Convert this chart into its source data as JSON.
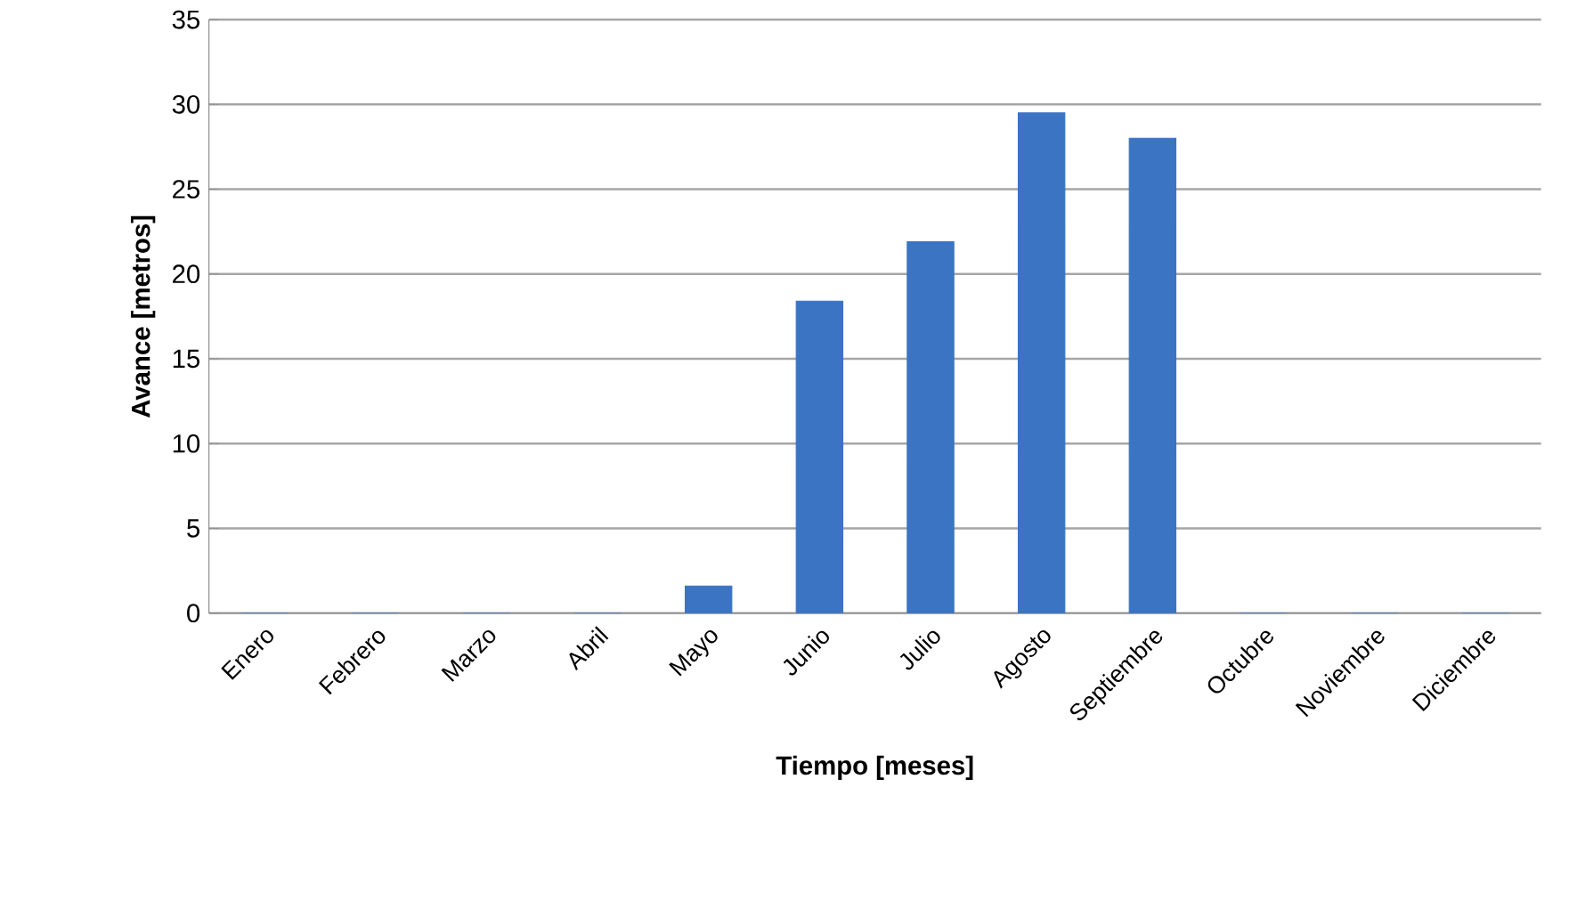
{
  "chart_data": {
    "type": "bar",
    "xlabel": "Tiempo [meses]",
    "ylabel": "Avance  [metros]",
    "categories": [
      "Enero",
      "Febrero",
      "Marzo",
      "Abril",
      "Mayo",
      "Junio",
      "Julio",
      "Agosto",
      "Septiembre",
      "Octubre",
      "Noviembre",
      "Diciembre"
    ],
    "values": [
      0,
      0,
      0,
      0,
      1.6,
      18.4,
      21.9,
      29.5,
      28.0,
      0,
      0,
      0
    ],
    "color": "#3a74c2",
    "ylim": [
      0,
      35
    ],
    "yticks": [
      0,
      5,
      10,
      15,
      20,
      25,
      30,
      35
    ],
    "grid": "y"
  }
}
